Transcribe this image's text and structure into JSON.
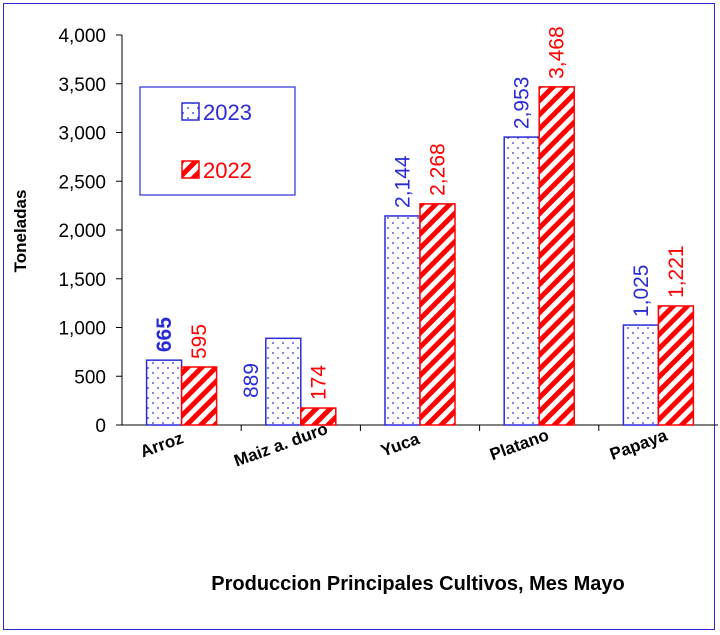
{
  "chart_data": {
    "type": "bar",
    "title": "Produccion Principales Cultivos, Mes Mayo",
    "ylabel": "Toneladas",
    "xlabel": "",
    "ylim": [
      0,
      4000
    ],
    "yticks": [
      0,
      500,
      1000,
      1500,
      2000,
      2500,
      3000,
      3500,
      4000
    ],
    "ytick_labels": [
      "0",
      "500",
      "1,000",
      "1,500",
      "2,000",
      "2,500",
      "3,000",
      "3,500",
      "4,000"
    ],
    "categories": [
      "Arroz",
      "Maiz a. duro",
      "Yuca",
      "Platano",
      "Papaya"
    ],
    "series": [
      {
        "name": "2023",
        "values": [
          665,
          889,
          2144,
          2953,
          1025
        ],
        "labels": [
          "665",
          "889",
          "2,144",
          "2,953",
          "1,025"
        ],
        "color": "#2b2bd6",
        "pattern": "dots"
      },
      {
        "name": "2022",
        "values": [
          595,
          174,
          2268,
          3468,
          1221
        ],
        "labels": [
          "595",
          "174",
          "2,268",
          "3,468",
          "1,221"
        ],
        "color": "#ff0000",
        "pattern": "diagonal-stripes"
      }
    ],
    "legend_position": "top-left",
    "grid": false
  }
}
